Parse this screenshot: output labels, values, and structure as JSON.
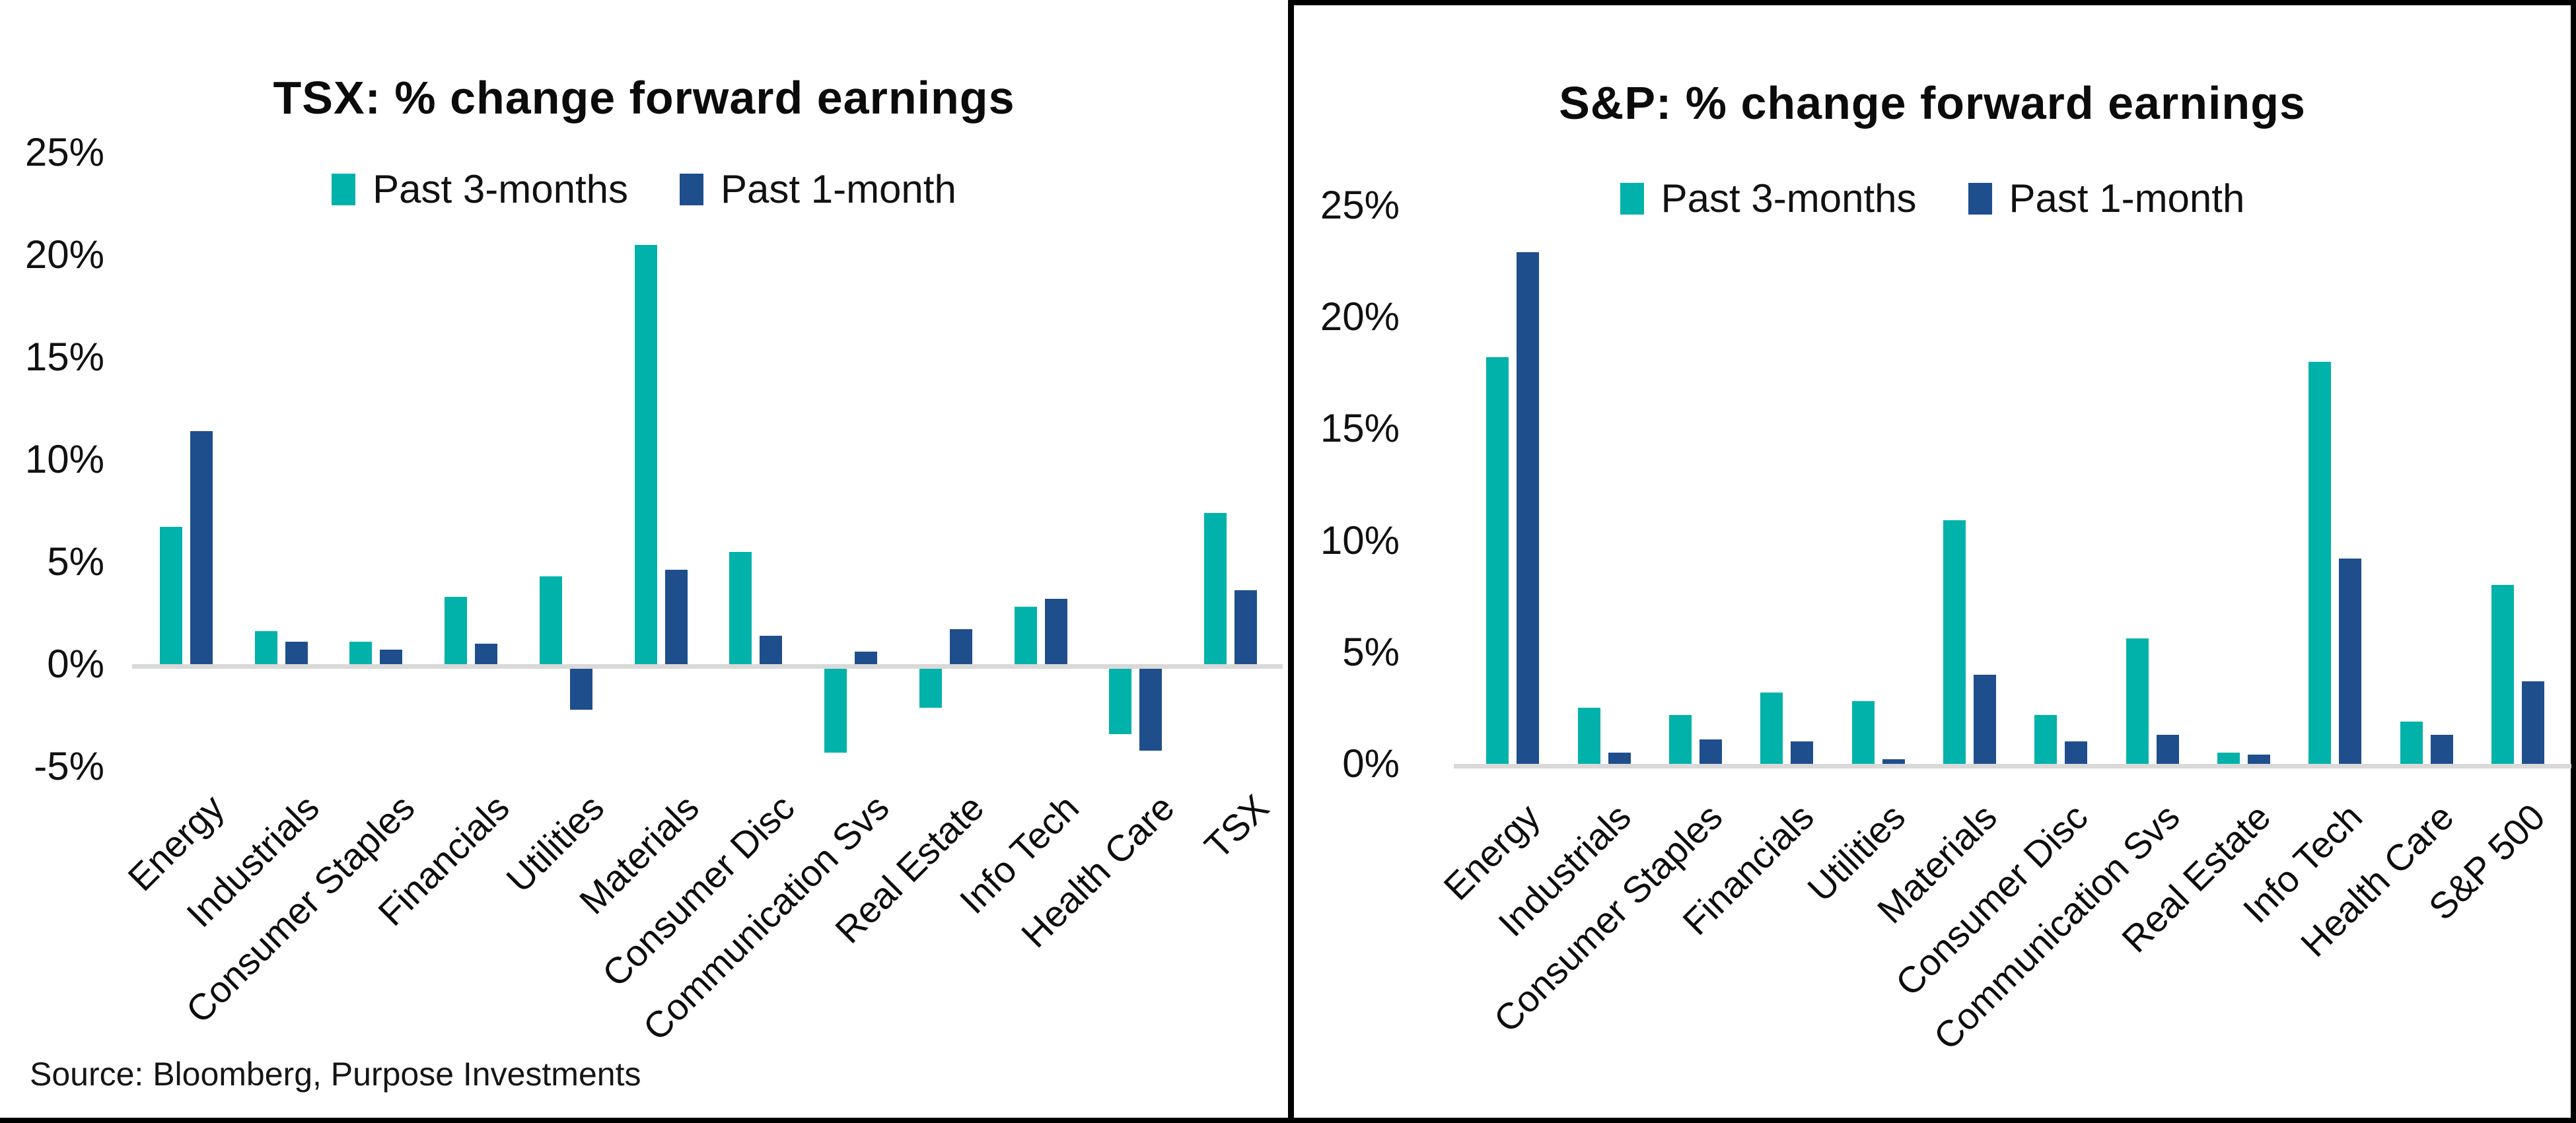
{
  "source": "Source: Bloomberg, Purpose Investments",
  "colors": {
    "past_3_months": "#00B2A9",
    "past_1_month": "#1F4E8C",
    "axis_line": "#D9D9D9",
    "border": "#000000"
  },
  "chart_data": [
    {
      "type": "bar",
      "title": "TSX: % change forward earnings",
      "xlabel": "",
      "ylabel": "",
      "ylim": [
        -5,
        25
      ],
      "grid": false,
      "legend_position": "top",
      "yticks": [
        {
          "value": 25,
          "label": "25%"
        },
        {
          "value": 20,
          "label": "20%"
        },
        {
          "value": 15,
          "label": "15%"
        },
        {
          "value": 10,
          "label": "10%"
        },
        {
          "value": 5,
          "label": "5%"
        },
        {
          "value": 0,
          "label": "0%"
        },
        {
          "value": -5,
          "label": "-5%"
        }
      ],
      "categories": [
        "Energy",
        "Industrials",
        "Consumer Staples",
        "Financials",
        "Utilities",
        "Materials",
        "Consumer Disc",
        "Communication Svs",
        "Real Estate",
        "Info Tech",
        "Health Care",
        "TSX"
      ],
      "series": [
        {
          "name": "Past 3-months",
          "color": "#00B2A9",
          "values": [
            6.7,
            1.6,
            1.1,
            3.3,
            4.3,
            20.5,
            5.5,
            -4.1,
            -1.9,
            2.8,
            -3.2,
            7.4
          ]
        },
        {
          "name": "Past 1-month",
          "color": "#1F4E8C",
          "values": [
            11.4,
            1.1,
            0.7,
            1.0,
            -2.0,
            4.6,
            1.4,
            0.6,
            1.7,
            3.2,
            -4.0,
            3.6
          ]
        }
      ]
    },
    {
      "type": "bar",
      "title": "S&P: % change forward earnings",
      "xlabel": "",
      "ylabel": "",
      "ylim": [
        0,
        25
      ],
      "grid": false,
      "legend_position": "top",
      "yticks": [
        {
          "value": 25,
          "label": "25%"
        },
        {
          "value": 20,
          "label": "20%"
        },
        {
          "value": 15,
          "label": "15%"
        },
        {
          "value": 10,
          "label": "10%"
        },
        {
          "value": 5,
          "label": "5%"
        },
        {
          "value": 0,
          "label": "0%"
        }
      ],
      "categories": [
        "Energy",
        "Industrials",
        "Consumer Staples",
        "Financials",
        "Utilities",
        "Materials",
        "Consumer Disc",
        "Communication Svs",
        "Real Estate",
        "Info Tech",
        "Health Care",
        "S&P 500"
      ],
      "series": [
        {
          "name": "Past 3-months",
          "color": "#00B2A9",
          "values": [
            18.2,
            2.5,
            2.2,
            3.2,
            2.8,
            10.9,
            2.2,
            5.6,
            0.5,
            18.0,
            1.9,
            8.0
          ]
        },
        {
          "name": "Past 1-month",
          "color": "#1F4E8C",
          "values": [
            22.9,
            0.5,
            1.1,
            1.0,
            0.2,
            4.0,
            1.0,
            1.3,
            0.4,
            9.2,
            1.3,
            3.7
          ]
        }
      ]
    }
  ]
}
